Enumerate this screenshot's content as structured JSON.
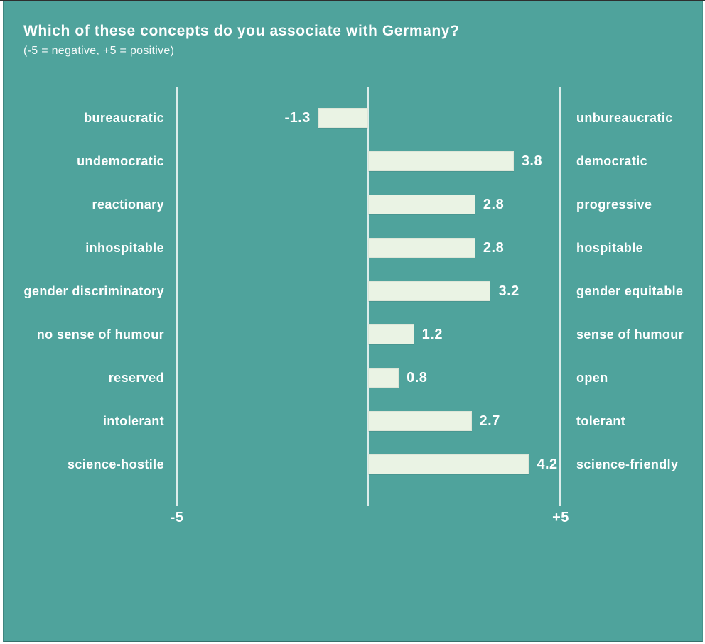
{
  "title": "Which of these concepts do you associate with Germany?",
  "subtitle": "(-5 = negative, +5 = positive)",
  "colors": {
    "background": "#4FA39C",
    "bar": "#EAF3E4",
    "text": "#FFFFFF"
  },
  "axis": {
    "min_label": "-5",
    "max_label": "+5",
    "min": -5,
    "max": 5
  },
  "chart_data": {
    "type": "bar",
    "orientation": "horizontal-diverging",
    "title": "Which of these concepts do you associate with Germany?",
    "subtitle": "(-5 = negative, +5 = positive)",
    "xlim": [
      -5,
      5
    ],
    "grid": false,
    "legend": false,
    "rows": [
      {
        "left_label": "bureaucratic",
        "right_label": "unbureaucratic",
        "value": -1.3
      },
      {
        "left_label": "undemocratic",
        "right_label": "democratic",
        "value": 3.8
      },
      {
        "left_label": "reactionary",
        "right_label": "progressive",
        "value": 2.8
      },
      {
        "left_label": "inhospitable",
        "right_label": "hospitable",
        "value": 2.8
      },
      {
        "left_label": "gender discriminatory",
        "right_label": "gender equitable",
        "value": 3.2
      },
      {
        "left_label": "no sense of humour",
        "right_label": "sense of humour",
        "value": 1.2
      },
      {
        "left_label": "reserved",
        "right_label": "open",
        "value": 0.8
      },
      {
        "left_label": "intolerant",
        "right_label": "tolerant",
        "value": 2.7
      },
      {
        "left_label": "science-hostile",
        "right_label": "science-friendly",
        "value": 4.2
      }
    ]
  }
}
